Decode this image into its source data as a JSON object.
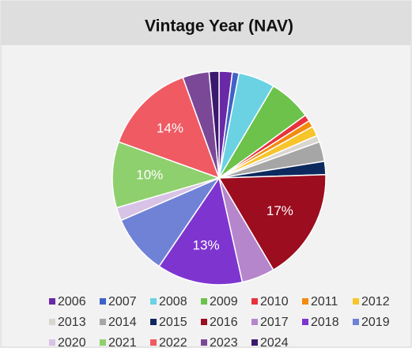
{
  "chart_data": {
    "type": "pie",
    "title": "Vintage Year (NAV)",
    "categories": [
      "2006",
      "2007",
      "2008",
      "2009",
      "2010",
      "2011",
      "2012",
      "2013",
      "2014",
      "2015",
      "2016",
      "2017",
      "2018",
      "2019",
      "2020",
      "2021",
      "2022",
      "2023",
      "2024"
    ],
    "values": [
      2,
      1,
      5.5,
      6.5,
      1,
      1,
      1.5,
      1,
      3,
      2,
      17,
      5,
      13,
      9,
      2,
      10,
      14,
      4,
      1.5
    ],
    "value_labels": [
      null,
      null,
      null,
      null,
      null,
      null,
      null,
      null,
      null,
      null,
      "17%",
      null,
      "13%",
      null,
      null,
      "10%",
      "14%",
      null,
      null
    ],
    "colors": [
      "#6a2aa8",
      "#3f62c8",
      "#6ad2e2",
      "#6cc24a",
      "#e8323c",
      "#f28c0f",
      "#f7c52b",
      "#d9d6d0",
      "#a6a6a6",
      "#0d2a5e",
      "#9b0d1f",
      "#b586cc",
      "#7e35d0",
      "#6f82d6",
      "#d8c2e6",
      "#8fd06e",
      "#f05a63",
      "#7b4898",
      "#3b1a6e"
    ],
    "legend": "bottom"
  }
}
